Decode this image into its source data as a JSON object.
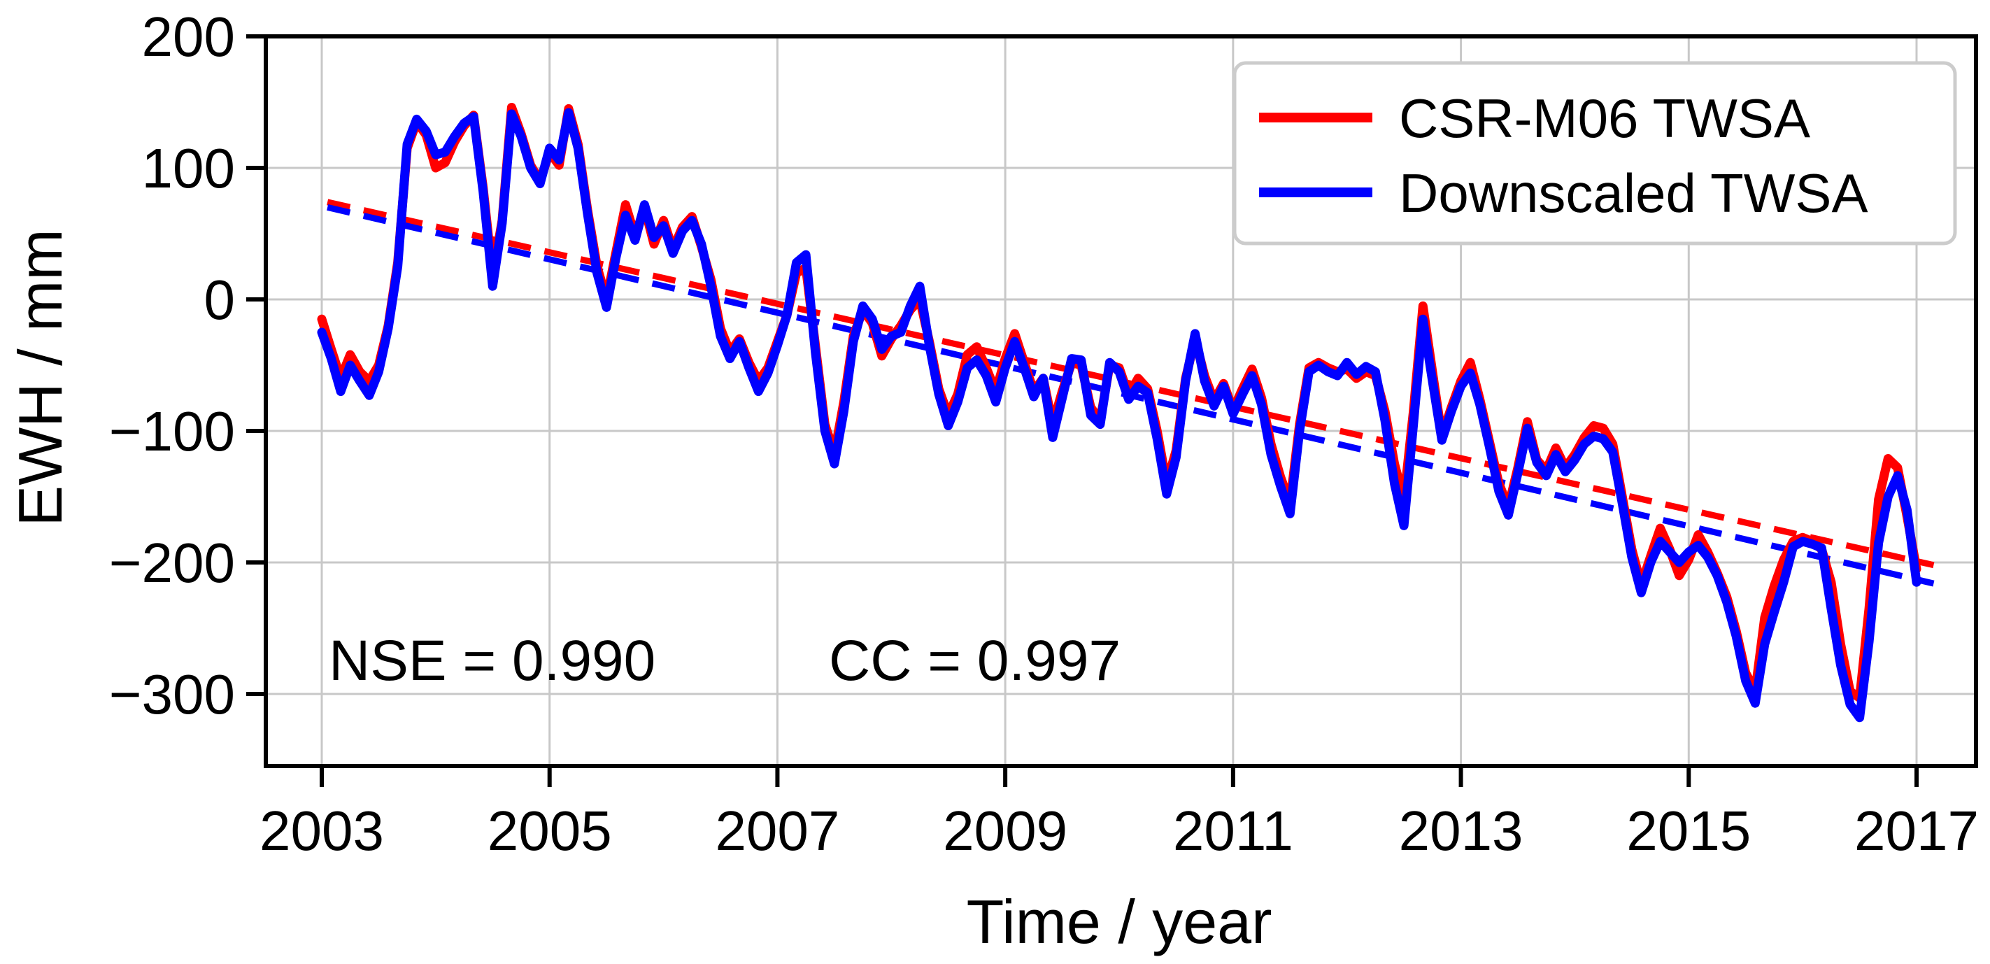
{
  "figure": {
    "background": "#ffffff",
    "grid_color": "#c8c8c8",
    "spine_color": "#000000",
    "legend_border_color": "#cccccc"
  },
  "chart_data": {
    "type": "line",
    "title": "",
    "xlabel": "Time / year",
    "ylabel": "EWH / mm",
    "xlim": [
      2002.51,
      2017.52
    ],
    "ylim": [
      -355,
      200
    ],
    "xticks": [
      2003,
      2005,
      2007,
      2009,
      2011,
      2013,
      2015,
      2017
    ],
    "yticks": [
      200,
      100,
      0,
      -100,
      -200,
      -300
    ],
    "grid": true,
    "legend_position": "upper right",
    "annotation": {
      "nse": "NSE = 0.990",
      "cc": "CC = 0.997"
    },
    "x_start": 2003.0,
    "x_step": 0.0833333,
    "series": [
      {
        "name": "CSR-M06 TWSA",
        "color": "#ff0000",
        "style": "solid",
        "values": [
          -15,
          -38,
          -60,
          -42,
          -55,
          -62,
          -50,
          -20,
          28,
          115,
          135,
          125,
          100,
          104,
          120,
          132,
          140,
          85,
          18,
          60,
          146,
          126,
          102,
          90,
          112,
          102,
          145,
          118,
          68,
          25,
          0,
          36,
          72,
          48,
          70,
          42,
          60,
          38,
          55,
          63,
          40,
          15,
          -22,
          -40,
          -30,
          -48,
          -62,
          -52,
          -32,
          -12,
          20,
          24,
          -35,
          -95,
          -117,
          -78,
          -28,
          -8,
          -18,
          -43,
          -30,
          -20,
          -8,
          0,
          -32,
          -68,
          -88,
          -72,
          -42,
          -36,
          -52,
          -70,
          -45,
          -26,
          -48,
          -70,
          -60,
          -95,
          -70,
          -48,
          -50,
          -82,
          -92,
          -50,
          -52,
          -73,
          -60,
          -68,
          -100,
          -140,
          -115,
          -60,
          -30,
          -58,
          -77,
          -64,
          -84,
          -68,
          -53,
          -75,
          -110,
          -135,
          -155,
          -95,
          -52,
          -48,
          -52,
          -55,
          -53,
          -60,
          -55,
          -58,
          -85,
          -125,
          -152,
          -85,
          -5,
          -55,
          -104,
          -82,
          -62,
          -48,
          -76,
          -108,
          -140,
          -158,
          -128,
          -93,
          -122,
          -130,
          -113,
          -128,
          -118,
          -105,
          -96,
          -98,
          -110,
          -150,
          -190,
          -217,
          -195,
          -174,
          -190,
          -210,
          -198,
          -179,
          -192,
          -208,
          -226,
          -252,
          -284,
          -298,
          -242,
          -218,
          -198,
          -184,
          -181,
          -184,
          -190,
          -215,
          -262,
          -298,
          -303,
          -235,
          -152,
          -121,
          -128,
          -165,
          -205
        ]
      },
      {
        "name": "Downscaled TWSA",
        "color": "#0000ff",
        "style": "solid",
        "values": [
          -25,
          -45,
          -70,
          -50,
          -62,
          -73,
          -55,
          -22,
          25,
          118,
          137,
          128,
          110,
          112,
          124,
          134,
          139,
          82,
          10,
          58,
          141,
          124,
          100,
          88,
          115,
          106,
          142,
          115,
          65,
          20,
          -6,
          32,
          64,
          45,
          72,
          47,
          56,
          35,
          52,
          60,
          42,
          10,
          -28,
          -45,
          -32,
          -52,
          -70,
          -56,
          -35,
          -12,
          28,
          34,
          -40,
          -100,
          -125,
          -85,
          -32,
          -5,
          -15,
          -38,
          -28,
          -25,
          -5,
          10,
          -35,
          -72,
          -96,
          -78,
          -52,
          -46,
          -58,
          -78,
          -52,
          -32,
          -52,
          -74,
          -60,
          -105,
          -75,
          -45,
          -46,
          -88,
          -95,
          -48,
          -55,
          -76,
          -66,
          -71,
          -106,
          -148,
          -120,
          -62,
          -26,
          -62,
          -81,
          -66,
          -87,
          -72,
          -58,
          -80,
          -118,
          -142,
          -163,
          -100,
          -55,
          -50,
          -55,
          -58,
          -48,
          -57,
          -51,
          -55,
          -92,
          -140,
          -172,
          -95,
          -15,
          -62,
          -107,
          -85,
          -66,
          -56,
          -80,
          -112,
          -146,
          -164,
          -132,
          -98,
          -124,
          -134,
          -118,
          -131,
          -122,
          -110,
          -104,
          -106,
          -116,
          -155,
          -196,
          -223,
          -200,
          -184,
          -192,
          -200,
          -192,
          -187,
          -196,
          -210,
          -230,
          -256,
          -290,
          -307,
          -262,
          -238,
          -215,
          -188,
          -184,
          -186,
          -189,
          -235,
          -278,
          -308,
          -318,
          -260,
          -185,
          -150,
          -134,
          -160,
          -215
        ]
      },
      {
        "name": "CSR-M06 trend",
        "color": "#ff0000",
        "style": "dashed",
        "x": [
          2003.05,
          2017.15
        ],
        "values": [
          74,
          -202
        ]
      },
      {
        "name": "Downscaled trend",
        "color": "#0000ff",
        "style": "dashed",
        "x": [
          2003.05,
          2017.15
        ],
        "values": [
          70,
          -216
        ]
      }
    ]
  }
}
